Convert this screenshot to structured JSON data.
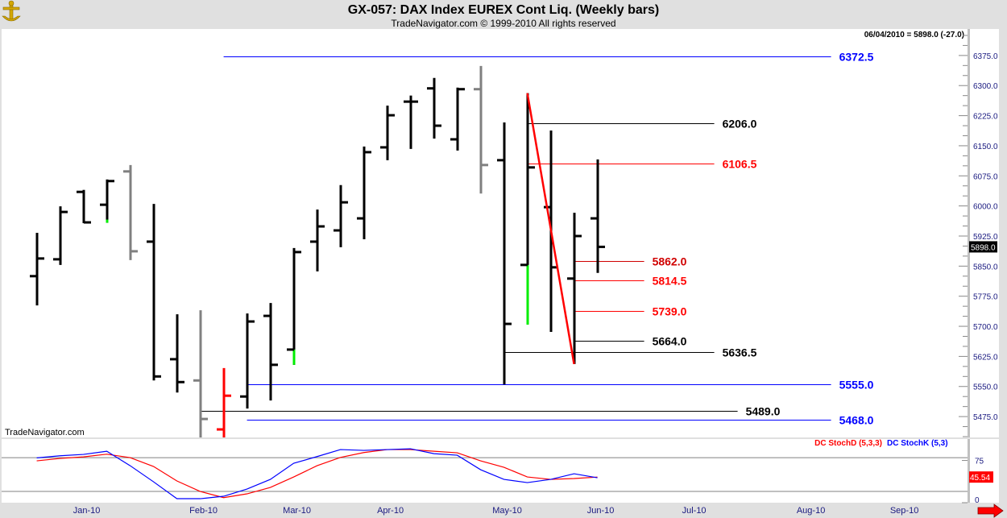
{
  "header": {
    "title": "GX-057:  DAX Index EUREX Cont Liq.  (Weekly bars)",
    "subtitle": "TradeNavigator.com © 1999-2010 All rights reserved",
    "readout": "06/04/2010 = 5898.0 (-27.0)",
    "logo_icon": "gold-anchor-logo-icon"
  },
  "watermark": "TradeNavigator.com",
  "colors": {
    "up": "#000000",
    "gray": "#808080",
    "red": "#ff0000",
    "green": "#00ee00",
    "blue": "#0000ff",
    "axis_text": "#1a1a80"
  },
  "chart_data": [
    {
      "type": "ohlc",
      "title": "GX-057:  DAX Index EUREX Cont Liq.  (Weekly bars)",
      "x_range": [
        "2009-12-07",
        "2010-09-24"
      ],
      "y_range": [
        5423,
        6441
      ],
      "y_ticks": [
        "5475.0",
        "5550.0",
        "5625.0",
        "5700.0",
        "5775.0",
        "5850.0",
        "5925.0",
        "6000.0",
        "6075.0",
        "6150.0",
        "6225.0",
        "6300.0",
        "6375.0"
      ],
      "x_ticks": [
        {
          "date": "2010-01-01",
          "label": "Jan-10"
        },
        {
          "date": "2010-02-05",
          "label": "Feb-10"
        },
        {
          "date": "2010-03-05",
          "label": "Mar-10"
        },
        {
          "date": "2010-04-02",
          "label": "Apr-10"
        },
        {
          "date": "2010-05-07",
          "label": "May-10"
        },
        {
          "date": "2010-06-04",
          "label": "Jun-10"
        },
        {
          "date": "2010-07-02",
          "label": "Jul-10"
        },
        {
          "date": "2010-08-06",
          "label": "Aug-10"
        },
        {
          "date": "2010-09-03",
          "label": "Sep-10"
        }
      ],
      "bars": [
        {
          "date": "2009-12-18",
          "o": 5825,
          "h": 5933,
          "l": 5752,
          "c": 5869,
          "color": "#000000"
        },
        {
          "date": "2009-12-25",
          "o": 5867,
          "h": 5999,
          "l": 5853,
          "c": 5985,
          "color": "#000000"
        },
        {
          "date": "2010-01-01",
          "o": 6035,
          "h": 6040,
          "l": 5957,
          "c": 5959,
          "color": "#000000"
        },
        {
          "date": "2010-01-08",
          "o": 6003,
          "h": 6066,
          "l": 5958,
          "c": 6062,
          "color": "#000000",
          "green_tail": [
            5958,
            5966
          ]
        },
        {
          "date": "2010-01-15",
          "o": 6086,
          "h": 6102,
          "l": 5865,
          "c": 5887,
          "color": "#808080"
        },
        {
          "date": "2010-01-22",
          "o": 5911,
          "h": 6005,
          "l": 5565,
          "c": 5575,
          "color": "#000000"
        },
        {
          "date": "2010-01-29",
          "o": 5618,
          "h": 5730,
          "l": 5535,
          "c": 5561,
          "color": "#000000"
        },
        {
          "date": "2010-02-05",
          "o": 5565,
          "h": 5740,
          "l": 5400,
          "c": 5469,
          "color": "#808080"
        },
        {
          "date": "2010-02-12",
          "o": 5443,
          "h": 5596,
          "l": 5400,
          "c": 5527,
          "color": "#ff0000"
        },
        {
          "date": "2010-02-19",
          "o": 5525,
          "h": 5732,
          "l": 5495,
          "c": 5712,
          "color": "#000000"
        },
        {
          "date": "2010-02-26",
          "o": 5726,
          "h": 5758,
          "l": 5515,
          "c": 5604,
          "color": "#000000"
        },
        {
          "date": "2010-03-05",
          "o": 5642,
          "h": 5895,
          "l": 5604,
          "c": 5885,
          "color": "#000000",
          "green_tail": [
            5604,
            5642
          ]
        },
        {
          "date": "2010-03-12",
          "o": 5911,
          "h": 5991,
          "l": 5837,
          "c": 5949,
          "color": "#000000"
        },
        {
          "date": "2010-03-19",
          "o": 5939,
          "h": 6052,
          "l": 5897,
          "c": 6009,
          "color": "#000000"
        },
        {
          "date": "2010-03-26",
          "o": 5969,
          "h": 6148,
          "l": 5917,
          "c": 6134,
          "color": "#000000"
        },
        {
          "date": "2010-04-02",
          "o": 6146,
          "h": 6250,
          "l": 6114,
          "c": 6226,
          "color": "#000000"
        },
        {
          "date": "2010-04-09",
          "o": 6260,
          "h": 6275,
          "l": 6142,
          "c": 6260,
          "color": "#000000"
        },
        {
          "date": "2010-04-16",
          "o": 6293,
          "h": 6319,
          "l": 6168,
          "c": 6200,
          "color": "#000000"
        },
        {
          "date": "2010-04-23",
          "o": 6166,
          "h": 6295,
          "l": 6138,
          "c": 6291,
          "color": "#000000"
        },
        {
          "date": "2010-04-30",
          "o": 6291,
          "h": 6349,
          "l": 6031,
          "c": 6102,
          "color": "#808080"
        },
        {
          "date": "2010-05-07",
          "o": 6114,
          "h": 6208,
          "l": 5555,
          "c": 5706,
          "color": "#000000"
        },
        {
          "date": "2010-05-14",
          "o": 5853,
          "h": 6281,
          "l": 5704,
          "c": 6096,
          "color": "#000000",
          "green_tail": [
            5704,
            5853
          ]
        },
        {
          "date": "2010-05-21",
          "o": 5997,
          "h": 6188,
          "l": 5686,
          "c": 5847,
          "color": "#000000"
        },
        {
          "date": "2010-05-28",
          "o": 5819,
          "h": 5983,
          "l": 5606,
          "c": 5925,
          "color": "#000000"
        },
        {
          "date": "2010-06-04",
          "o": 5969,
          "h": 6116,
          "l": 5833,
          "c": 5898,
          "color": "#000000"
        }
      ],
      "horizontal_lines": [
        {
          "price": 6372.5,
          "label": "6372.5",
          "color": "#0000ff",
          "start": "2010-02-12",
          "end": "2010-08-13"
        },
        {
          "price": 6206.0,
          "label": "6206.0",
          "color": "#000000",
          "start": "2010-05-14",
          "end": "2010-07-09"
        },
        {
          "price": 6106.5,
          "label": "6106.5",
          "color": "#ff0000",
          "start": "2010-05-14",
          "end": "2010-07-09"
        },
        {
          "price": 5862.0,
          "label": "5862.0",
          "color": "#d00000",
          "start": "2010-05-28",
          "end": "2010-06-18"
        },
        {
          "price": 5814.5,
          "label": "5814.5",
          "color": "#ff0000",
          "start": "2010-05-28",
          "end": "2010-06-18"
        },
        {
          "price": 5739.0,
          "label": "5739.0",
          "color": "#ff0000",
          "start": "2010-05-28",
          "end": "2010-06-18"
        },
        {
          "price": 5664.0,
          "label": "5664.0",
          "color": "#000000",
          "start": "2010-05-28",
          "end": "2010-06-18"
        },
        {
          "price": 5636.5,
          "label": "5636.5",
          "color": "#000000",
          "start": "2010-05-07",
          "end": "2010-07-09"
        },
        {
          "price": 5555.0,
          "label": "5555.0",
          "color": "#0000ff",
          "start": "2010-02-19",
          "end": "2010-08-13"
        },
        {
          "price": 5489.0,
          "label": "5489.0",
          "color": "#000000",
          "start": "2010-02-05",
          "end": "2010-07-16"
        },
        {
          "price": 5468.0,
          "label": "5468.0",
          "color": "#0000ff",
          "start": "2010-02-19",
          "end": "2010-08-13"
        }
      ],
      "trendline": {
        "start": {
          "date": "2010-05-14",
          "price": 6281
        },
        "end": {
          "date": "2010-05-28",
          "price": 5606
        },
        "color": "#ff0000"
      },
      "last_price_label": "5898.0",
      "last_price": 5898.0
    },
    {
      "type": "line",
      "y_range": [
        0,
        113
      ],
      "y_ticks": [
        "0",
        "75"
      ],
      "reference_lines": [
        20,
        80
      ],
      "series": [
        {
          "name": "DC StochD (5,3,3)",
          "color": "#ff0000",
          "values": [
            74.3,
            78.6,
            81.4,
            86.1,
            80.0,
            64.3,
            38.6,
            20.0,
            9.0,
            15.7,
            27.1,
            45.7,
            65.7,
            80.4,
            89.0,
            94.3,
            94.3,
            91.4,
            88.6,
            74.3,
            62.9,
            45.7,
            41.4,
            42.9,
            45.54
          ]
        },
        {
          "name": "DC StochK (5,3)",
          "color": "#0000ff",
          "values": [
            79.6,
            83.3,
            85.7,
            91.4,
            65.7,
            37.1,
            7.1,
            7.1,
            11.4,
            24.3,
            41.4,
            70.0,
            81.9,
            94.3,
            92.9,
            94.3,
            95.7,
            87.1,
            84.3,
            58.6,
            41.4,
            35.7,
            41.4,
            51.4,
            44.3
          ]
        }
      ],
      "last_value_label": "45.54"
    }
  ],
  "nav": {
    "scroll_right_icon": "red-right-arrow-icon"
  }
}
